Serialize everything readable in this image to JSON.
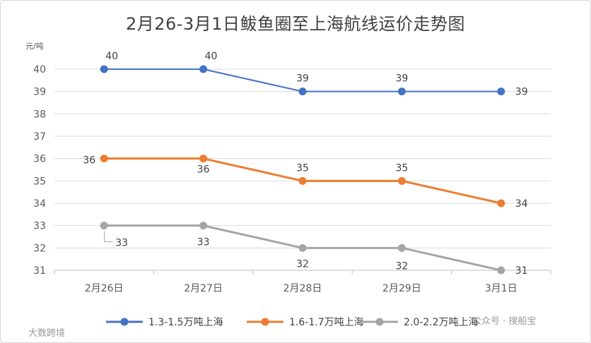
{
  "chart_data": {
    "type": "line",
    "title": "2月26-3月1日鲅鱼圈至上海航线运价走势图",
    "ylabel": "元/吨",
    "xlabel": "",
    "categories": [
      "2月26日",
      "2月27日",
      "2月28日",
      "2月29日",
      "3月1日"
    ],
    "ylim": [
      31,
      40
    ],
    "yticks": [
      "40",
      "39",
      "38",
      "37",
      "36",
      "35",
      "34",
      "33",
      "32",
      "31"
    ],
    "grid": true,
    "legend_position": "bottom",
    "series": [
      {
        "name": "1.3-1.5万吨上海",
        "values": [
          40,
          40,
          39,
          39,
          39
        ],
        "color": "#4472C4"
      },
      {
        "name": "1.6-1.7万吨上海",
        "values": [
          36,
          36,
          35,
          35,
          34
        ],
        "color": "#ED7D31"
      },
      {
        "name": "2.0-2.2万吨上海",
        "values": [
          33,
          33,
          32,
          32,
          31
        ],
        "color": "#A5A5A5"
      }
    ]
  },
  "watermarks": {
    "left": "大数跨境",
    "right": "公众号 · 搜船宝"
  }
}
